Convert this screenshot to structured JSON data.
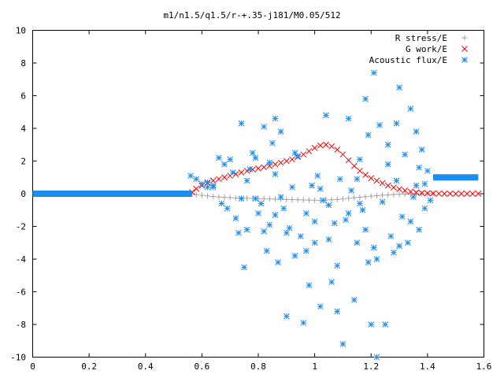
{
  "chart_data": {
    "type": "scatter",
    "title": "m1/n1.5/q1.5/r-+.35-j181/M0.05/512",
    "xlabel": "",
    "ylabel": "",
    "xlim": [
      0,
      1.6
    ],
    "ylim": [
      -10,
      10
    ],
    "x_ticks": [
      "0",
      "0.2",
      "0.4",
      "0.6",
      "0.8",
      "1",
      "1.2",
      "1.4",
      "1.6"
    ],
    "y_ticks": [
      "10",
      "8",
      "6",
      "4",
      "2",
      "0",
      "-2",
      "-4",
      "-6",
      "-8",
      "-10"
    ],
    "legend_position": "top-right",
    "grid": false,
    "series": [
      {
        "name": "R stress/E",
        "marker": "plus",
        "color": "#a0a0a0",
        "points": [
          [
            0.565,
            0.0
          ],
          [
            0.58,
            -0.05
          ],
          [
            0.6,
            -0.1
          ],
          [
            0.62,
            -0.14
          ],
          [
            0.64,
            -0.17
          ],
          [
            0.66,
            -0.2
          ],
          [
            0.68,
            -0.22
          ],
          [
            0.7,
            -0.24
          ],
          [
            0.72,
            -0.26
          ],
          [
            0.74,
            -0.27
          ],
          [
            0.76,
            -0.28
          ],
          [
            0.78,
            -0.29
          ],
          [
            0.8,
            -0.3
          ],
          [
            0.82,
            -0.31
          ],
          [
            0.84,
            -0.32
          ],
          [
            0.86,
            -0.33
          ],
          [
            0.88,
            -0.34
          ],
          [
            0.9,
            -0.35
          ],
          [
            0.92,
            -0.36
          ],
          [
            0.94,
            -0.37
          ],
          [
            0.96,
            -0.38
          ],
          [
            0.98,
            -0.39
          ],
          [
            1.0,
            -0.4
          ],
          [
            1.02,
            -0.4
          ],
          [
            1.04,
            -0.39
          ],
          [
            1.06,
            -0.37
          ],
          [
            1.08,
            -0.35
          ],
          [
            1.1,
            -0.32
          ],
          [
            1.12,
            -0.28
          ],
          [
            1.14,
            -0.25
          ],
          [
            1.16,
            -0.22
          ],
          [
            1.18,
            -0.18
          ],
          [
            1.2,
            -0.15
          ],
          [
            1.22,
            -0.12
          ],
          [
            1.24,
            -0.09
          ],
          [
            1.26,
            -0.07
          ],
          [
            1.28,
            -0.05
          ],
          [
            1.3,
            -0.03
          ],
          [
            1.32,
            -0.02
          ],
          [
            1.34,
            -0.01
          ],
          [
            1.36,
            0.0
          ],
          [
            1.38,
            0.0
          ],
          [
            1.4,
            0.0
          ],
          [
            1.42,
            0.0
          ]
        ]
      },
      {
        "name": "G work/E",
        "marker": "cross",
        "color": "#ff0000",
        "points": [
          [
            0.565,
            0.1
          ],
          [
            0.58,
            0.3
          ],
          [
            0.6,
            0.5
          ],
          [
            0.62,
            0.65
          ],
          [
            0.64,
            0.8
          ],
          [
            0.66,
            0.9
          ],
          [
            0.68,
            1.0
          ],
          [
            0.7,
            1.1
          ],
          [
            0.72,
            1.2
          ],
          [
            0.74,
            1.3
          ],
          [
            0.76,
            1.4
          ],
          [
            0.78,
            1.48
          ],
          [
            0.8,
            1.55
          ],
          [
            0.82,
            1.62
          ],
          [
            0.84,
            1.7
          ],
          [
            0.86,
            1.8
          ],
          [
            0.88,
            1.9
          ],
          [
            0.9,
            2.0
          ],
          [
            0.92,
            2.1
          ],
          [
            0.94,
            2.25
          ],
          [
            0.96,
            2.4
          ],
          [
            0.98,
            2.6
          ],
          [
            1.0,
            2.8
          ],
          [
            1.02,
            2.95
          ],
          [
            1.04,
            3.0
          ],
          [
            1.06,
            2.9
          ],
          [
            1.08,
            2.7
          ],
          [
            1.1,
            2.4
          ],
          [
            1.12,
            2.05
          ],
          [
            1.14,
            1.7
          ],
          [
            1.16,
            1.4
          ],
          [
            1.18,
            1.15
          ],
          [
            1.2,
            0.95
          ],
          [
            1.22,
            0.8
          ],
          [
            1.24,
            0.65
          ],
          [
            1.26,
            0.5
          ],
          [
            1.28,
            0.38
          ],
          [
            1.3,
            0.28
          ],
          [
            1.32,
            0.2
          ],
          [
            1.34,
            0.13
          ],
          [
            1.36,
            0.08
          ],
          [
            1.38,
            0.05
          ],
          [
            1.4,
            0.03
          ],
          [
            1.42,
            0.02
          ],
          [
            1.44,
            0.01
          ],
          [
            1.46,
            0.0
          ],
          [
            1.48,
            0.0
          ],
          [
            1.5,
            0.0
          ],
          [
            1.52,
            0.0
          ],
          [
            1.54,
            0.0
          ],
          [
            1.56,
            0.0
          ],
          [
            1.58,
            0.0
          ]
        ]
      },
      {
        "name": "Acoustic flux/E",
        "marker": "star",
        "color": "#1e8cf0",
        "lines": [
          {
            "x_from": 0.0,
            "x_to": 0.565,
            "y": 0.0
          },
          {
            "x_from": 1.42,
            "x_to": 1.58,
            "y": 1.0
          }
        ],
        "points": [
          [
            0.56,
            1.1
          ],
          [
            0.58,
            0.9
          ],
          [
            0.6,
            0.6
          ],
          [
            0.62,
            0.4
          ],
          [
            0.64,
            0.5
          ],
          [
            0.66,
            2.2
          ],
          [
            0.67,
            -0.6
          ],
          [
            0.68,
            1.8
          ],
          [
            0.69,
            -0.9
          ],
          [
            0.7,
            2.1
          ],
          [
            0.71,
            1.3
          ],
          [
            0.72,
            -1.5
          ],
          [
            0.73,
            -2.4
          ],
          [
            0.74,
            4.3
          ],
          [
            0.75,
            -4.5
          ],
          [
            0.76,
            0.8
          ],
          [
            0.77,
            1.5
          ],
          [
            0.78,
            2.5
          ],
          [
            0.79,
            -0.3
          ],
          [
            0.8,
            -1.2
          ],
          [
            0.81,
            -0.6
          ],
          [
            0.82,
            -2.3
          ],
          [
            0.83,
            -3.5
          ],
          [
            0.84,
            1.9
          ],
          [
            0.85,
            3.1
          ],
          [
            0.86,
            -1.3
          ],
          [
            0.87,
            -4.2
          ],
          [
            0.88,
            3.8
          ],
          [
            0.89,
            -0.9
          ],
          [
            0.9,
            -7.5
          ],
          [
            0.91,
            -2.1
          ],
          [
            0.92,
            0.4
          ],
          [
            0.93,
            -3.8
          ],
          [
            0.94,
            2.3
          ],
          [
            0.95,
            -2.6
          ],
          [
            0.96,
            -7.9
          ],
          [
            0.97,
            -1.2
          ],
          [
            0.98,
            -5.6
          ],
          [
            0.99,
            0.5
          ],
          [
            1.0,
            -3.0
          ],
          [
            1.01,
            1.1
          ],
          [
            1.02,
            -6.9
          ],
          [
            1.03,
            -0.4
          ],
          [
            1.04,
            4.8
          ],
          [
            1.05,
            -2.8
          ],
          [
            1.06,
            -5.4
          ],
          [
            1.07,
            -1.8
          ],
          [
            1.08,
            -7.2
          ],
          [
            1.09,
            0.9
          ],
          [
            1.1,
            -9.2
          ],
          [
            1.11,
            -1.6
          ],
          [
            1.12,
            4.6
          ],
          [
            1.13,
            0.2
          ],
          [
            1.14,
            -6.5
          ],
          [
            1.15,
            -3.0
          ],
          [
            1.16,
            2.1
          ],
          [
            1.17,
            -1.0
          ],
          [
            1.18,
            5.8
          ],
          [
            1.19,
            -4.2
          ],
          [
            1.2,
            -8.0
          ],
          [
            1.21,
            -3.3
          ],
          [
            1.22,
            -10.0
          ],
          [
            1.23,
            4.2
          ],
          [
            1.24,
            -0.5
          ],
          [
            1.25,
            -8.0
          ],
          [
            1.26,
            3.0
          ],
          [
            1.27,
            -2.6
          ],
          [
            1.28,
            -3.6
          ],
          [
            1.29,
            0.8
          ],
          [
            1.3,
            6.5
          ],
          [
            1.31,
            -1.4
          ],
          [
            1.32,
            2.4
          ],
          [
            1.33,
            -3.0
          ],
          [
            1.34,
            5.2
          ],
          [
            1.35,
            -0.2
          ],
          [
            1.36,
            3.8
          ],
          [
            1.37,
            -2.2
          ],
          [
            1.38,
            2.7
          ],
          [
            1.39,
            0.6
          ],
          [
            1.4,
            1.4
          ],
          [
            1.41,
            -0.4
          ],
          [
            0.62,
            0.7
          ],
          [
            0.64,
            0.4
          ],
          [
            0.76,
            -2.2
          ],
          [
            0.79,
            2.2
          ],
          [
            0.84,
            -1.9
          ],
          [
            0.86,
            1.2
          ],
          [
            0.9,
            -2.4
          ],
          [
            0.93,
            2.5
          ],
          [
            0.97,
            -3.5
          ],
          [
            1.0,
            -1.7
          ],
          [
            1.05,
            -0.7
          ],
          [
            1.08,
            -4.4
          ],
          [
            1.12,
            -1.2
          ],
          [
            1.15,
            0.9
          ],
          [
            1.18,
            -2.2
          ],
          [
            1.22,
            -4.0
          ],
          [
            1.26,
            1.8
          ],
          [
            1.3,
            -3.2
          ],
          [
            1.34,
            -1.7
          ],
          [
            1.37,
            1.6
          ],
          [
            1.39,
            -0.9
          ],
          [
            0.74,
            -0.3
          ],
          [
            0.88,
            -0.2
          ],
          [
            1.02,
            0.3
          ],
          [
            1.16,
            -0.6
          ],
          [
            1.36,
            0.5
          ],
          [
            1.21,
            7.4
          ],
          [
            0.86,
            4.6
          ],
          [
            1.19,
            3.6
          ],
          [
            0.82,
            4.1
          ],
          [
            1.29,
            4.3
          ]
        ]
      }
    ]
  }
}
